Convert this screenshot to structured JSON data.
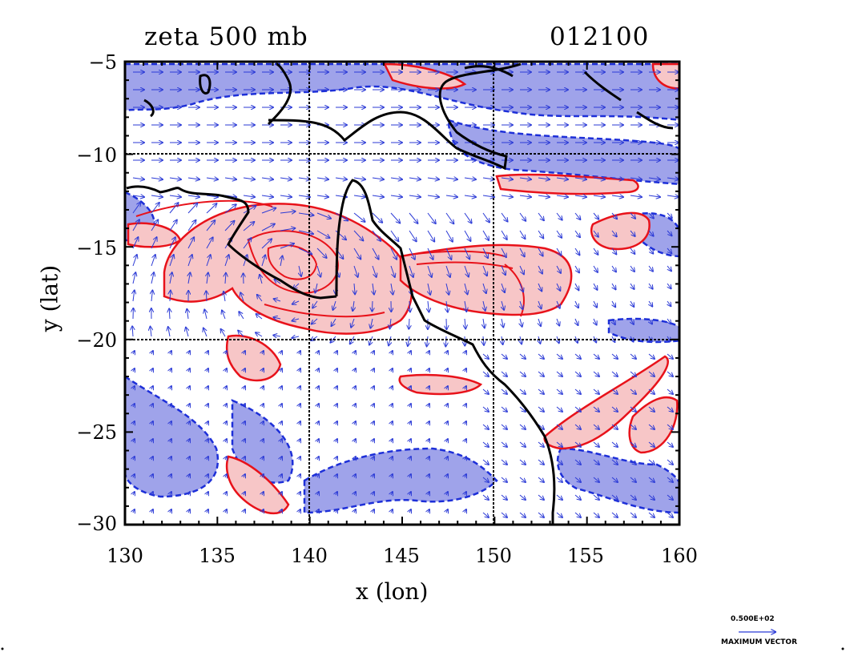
{
  "title": "zeta 500 mb",
  "timestamp": "012100",
  "chart_data": {
    "type": "contour-vector-map",
    "xlabel": "x (lon)",
    "ylabel": "y (lat)",
    "xlim": [
      130,
      160
    ],
    "ylim": [
      -30,
      -5
    ],
    "x_ticks": [
      "130",
      "135",
      "140",
      "145",
      "150",
      "155",
      "160"
    ],
    "y_ticks": [
      "−5",
      "−10",
      "−15",
      "−20",
      "−25",
      "−30"
    ],
    "grid_lines": {
      "lon": [
        140,
        150
      ],
      "lat": [
        -10,
        -20
      ]
    },
    "colors": {
      "positive": "#f7c6c7",
      "positive_line": "#e8121a",
      "negative": "#9fa3ea",
      "negative_line": "#1d2fd8",
      "vector": "#2b3ad6",
      "coast": "#000000"
    }
  },
  "legend": {
    "value": "0.500E+02",
    "label": "MAXIMUM VECTOR"
  }
}
